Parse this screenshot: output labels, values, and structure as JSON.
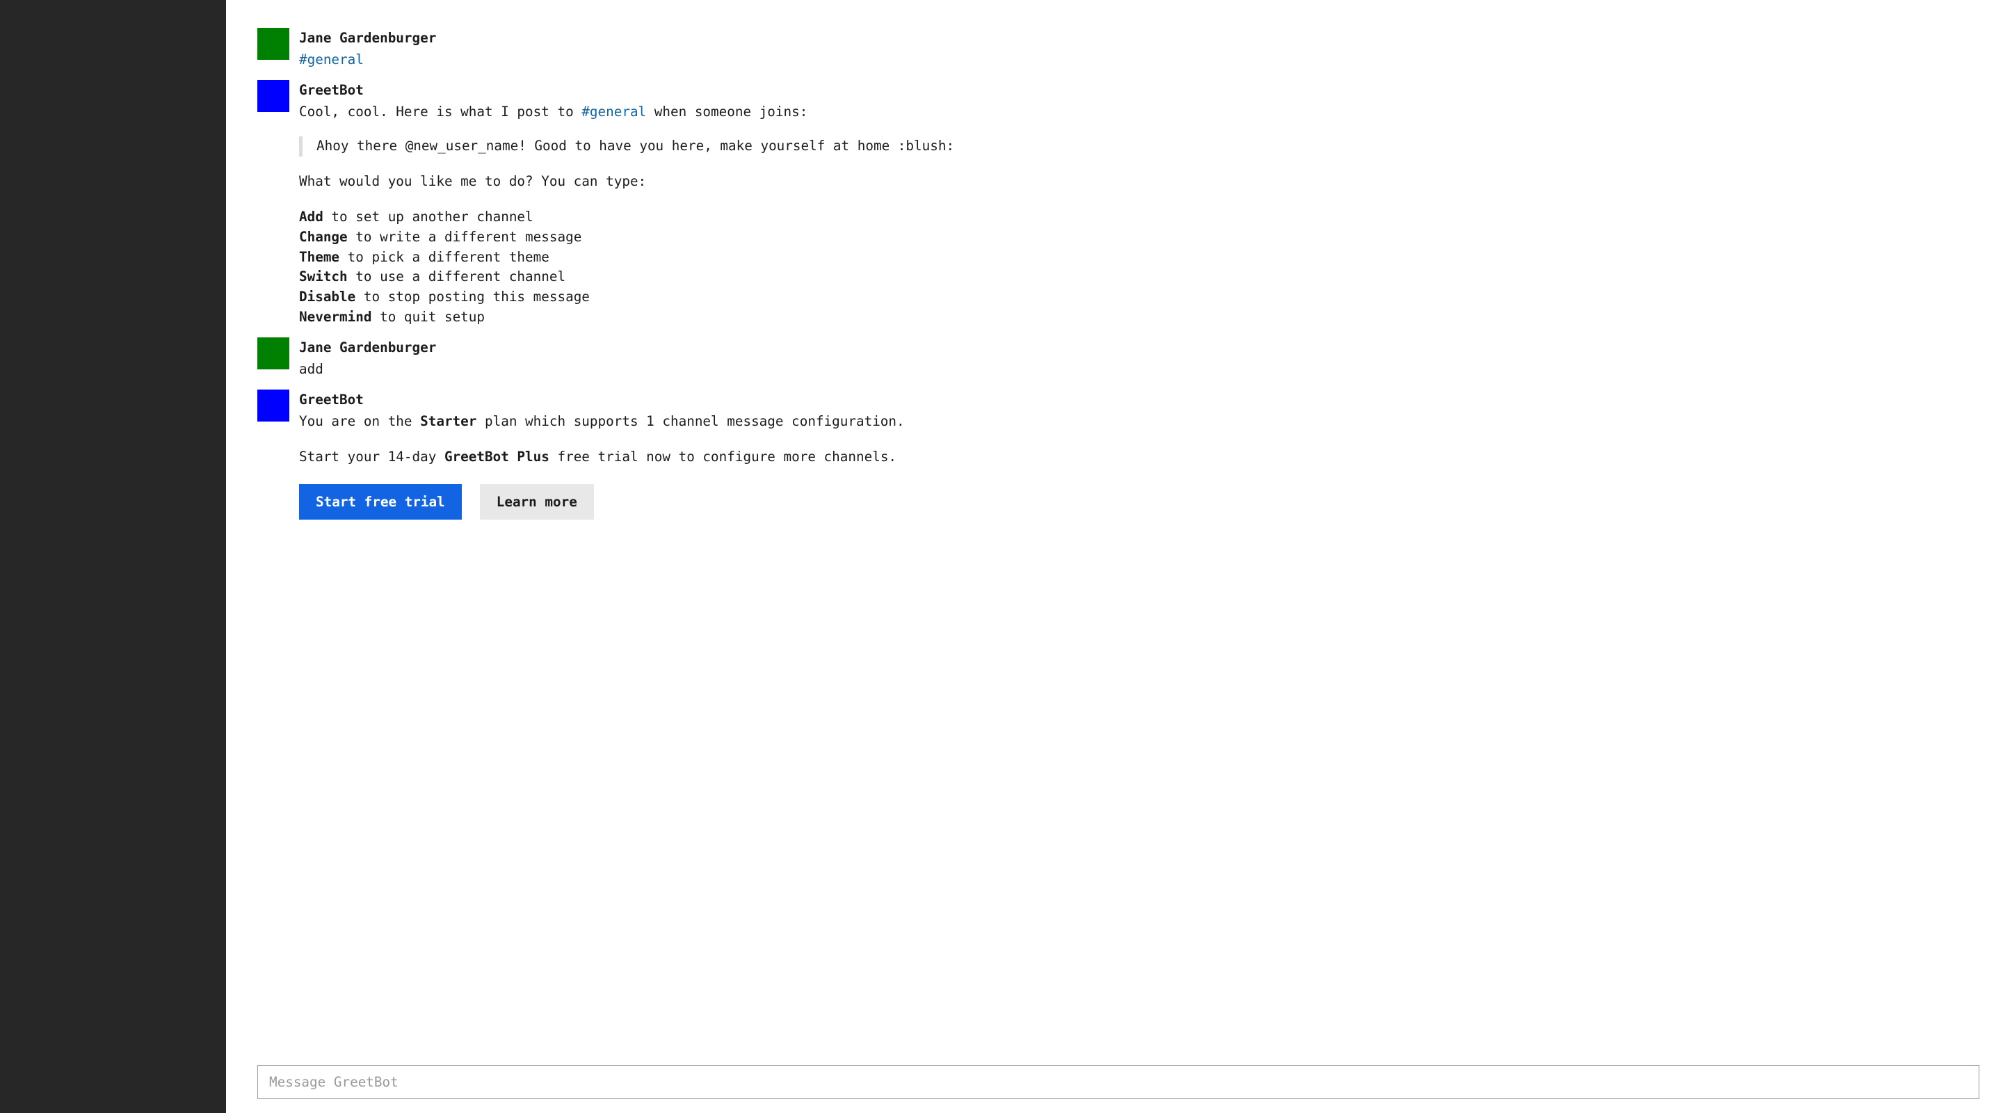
{
  "colors": {
    "sidebar_bg": "#272727",
    "avatar_user": "#008000",
    "avatar_bot": "#0000ff",
    "channel_link": "#1264a3",
    "btn_primary_bg": "#1264e3",
    "btn_primary_fg": "#ffffff",
    "btn_secondary_bg": "#e8e8e8",
    "quote_bar": "#dddddd"
  },
  "messages": [
    {
      "author": "Jane Gardenburger",
      "avatar": "user",
      "body_channel": "#general"
    },
    {
      "author": "GreetBot",
      "avatar": "bot",
      "intro_prefix": "Cool, cool. Here is what I post to ",
      "intro_channel": "#general",
      "intro_suffix": " when someone joins:",
      "quote": "Ahoy there @new_user_name! Good to have you here, make yourself at home :blush:",
      "prompt": "What would you like me to do? You can type:",
      "commands": [
        {
          "cmd": "Add",
          "desc": " to set up another channel"
        },
        {
          "cmd": "Change",
          "desc": " to write a different message"
        },
        {
          "cmd": "Theme",
          "desc": " to pick a different theme"
        },
        {
          "cmd": "Switch",
          "desc": " to use a different channel"
        },
        {
          "cmd": "Disable",
          "desc": " to stop posting this message"
        },
        {
          "cmd": "Nevermind",
          "desc": " to quit setup"
        }
      ]
    },
    {
      "author": "Jane Gardenburger",
      "avatar": "user",
      "body_text": "add"
    },
    {
      "author": "GreetBot",
      "avatar": "bot",
      "plan_line": {
        "p1": "You are on the ",
        "b1": "Starter",
        "p2": " plan which supports 1 channel message configuration."
      },
      "trial_line": {
        "p1": "Start your 14-day ",
        "b1": "GreetBot Plus",
        "p2": " free trial now to configure more channels."
      },
      "buttons": {
        "primary": "Start free trial",
        "secondary": "Learn more"
      }
    }
  ],
  "composer": {
    "placeholder": "Message GreetBot"
  }
}
